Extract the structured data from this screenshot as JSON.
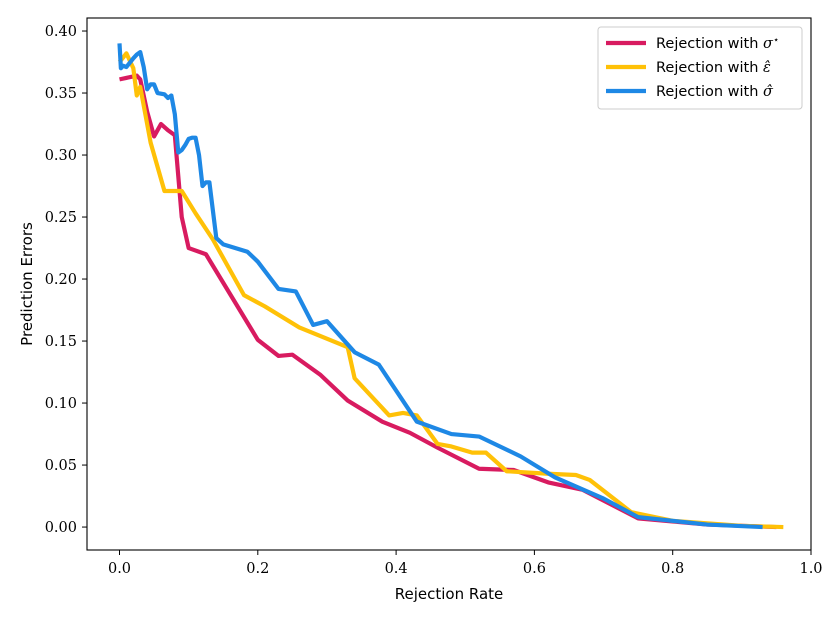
{
  "chart_data": {
    "type": "line",
    "title": "",
    "xlabel": "Rejection Rate",
    "ylabel": "Prediction Errors",
    "xlim": [
      -0.047,
      1.0
    ],
    "ylim": [
      -0.0185,
      0.4105
    ],
    "xticks": [
      0.0,
      0.2,
      0.4,
      0.6,
      0.8,
      1.0
    ],
    "xtick_labels": [
      "0.0",
      "0.2",
      "0.4",
      "0.6",
      "0.8",
      "1.0"
    ],
    "yticks": [
      0.0,
      0.05,
      0.1,
      0.15,
      0.2,
      0.25,
      0.3,
      0.35,
      0.4
    ],
    "ytick_labels": [
      "0.00",
      "0.05",
      "0.10",
      "0.15",
      "0.20",
      "0.25",
      "0.30",
      "0.35",
      "0.40"
    ],
    "grid": false,
    "legend_position": "top-right",
    "series": [
      {
        "name": "Rejection with σ*",
        "legend_prefix": "Rejection with ",
        "legend_symbol": "σ",
        "legend_mark": "*",
        "color": "#d81b60",
        "x": [
          0.0,
          0.025,
          0.03,
          0.04,
          0.05,
          0.06,
          0.07,
          0.08,
          0.09,
          0.1,
          0.125,
          0.2,
          0.23,
          0.25,
          0.29,
          0.33,
          0.38,
          0.42,
          0.46,
          0.52,
          0.57,
          0.62,
          0.67,
          0.75,
          0.85,
          0.95
        ],
        "y": [
          0.361,
          0.364,
          0.361,
          0.335,
          0.315,
          0.325,
          0.32,
          0.316,
          0.25,
          0.225,
          0.22,
          0.151,
          0.138,
          0.139,
          0.123,
          0.102,
          0.085,
          0.076,
          0.064,
          0.047,
          0.046,
          0.036,
          0.03,
          0.007,
          0.002,
          0.0
        ]
      },
      {
        "name": "Rejection with ε̂",
        "legend_prefix": "Rejection with ",
        "legend_symbol": "ε",
        "legend_mark": "^",
        "color": "#ffc107",
        "x": [
          0.0,
          0.01,
          0.02,
          0.025,
          0.03,
          0.045,
          0.065,
          0.09,
          0.11,
          0.135,
          0.18,
          0.21,
          0.26,
          0.33,
          0.34,
          0.39,
          0.41,
          0.43,
          0.46,
          0.48,
          0.51,
          0.53,
          0.56,
          0.62,
          0.66,
          0.68,
          0.74,
          0.8,
          0.9,
          0.96
        ],
        "y": [
          0.375,
          0.382,
          0.37,
          0.348,
          0.355,
          0.31,
          0.271,
          0.271,
          0.253,
          0.232,
          0.187,
          0.178,
          0.161,
          0.145,
          0.12,
          0.09,
          0.092,
          0.09,
          0.067,
          0.065,
          0.06,
          0.06,
          0.045,
          0.043,
          0.042,
          0.038,
          0.012,
          0.005,
          0.001,
          0.0
        ]
      },
      {
        "name": "Rejection with σ̂",
        "legend_prefix": "Rejection with ",
        "legend_symbol": "σ",
        "legend_mark": "^",
        "color": "#1e88e5",
        "x": [
          0.0,
          0.002,
          0.005,
          0.01,
          0.02,
          0.025,
          0.03,
          0.035,
          0.04,
          0.045,
          0.05,
          0.055,
          0.065,
          0.07,
          0.075,
          0.08,
          0.085,
          0.09,
          0.095,
          0.1,
          0.105,
          0.11,
          0.115,
          0.12,
          0.125,
          0.13,
          0.14,
          0.15,
          0.185,
          0.2,
          0.23,
          0.255,
          0.28,
          0.3,
          0.34,
          0.375,
          0.43,
          0.48,
          0.52,
          0.58,
          0.63,
          0.7,
          0.75,
          0.85,
          0.93
        ],
        "y": [
          0.39,
          0.37,
          0.372,
          0.371,
          0.378,
          0.381,
          0.383,
          0.371,
          0.353,
          0.357,
          0.357,
          0.35,
          0.349,
          0.346,
          0.348,
          0.333,
          0.302,
          0.304,
          0.308,
          0.313,
          0.314,
          0.314,
          0.3,
          0.275,
          0.278,
          0.278,
          0.233,
          0.228,
          0.222,
          0.214,
          0.192,
          0.19,
          0.163,
          0.166,
          0.141,
          0.131,
          0.085,
          0.075,
          0.073,
          0.057,
          0.04,
          0.023,
          0.008,
          0.002,
          0.0
        ]
      }
    ]
  }
}
